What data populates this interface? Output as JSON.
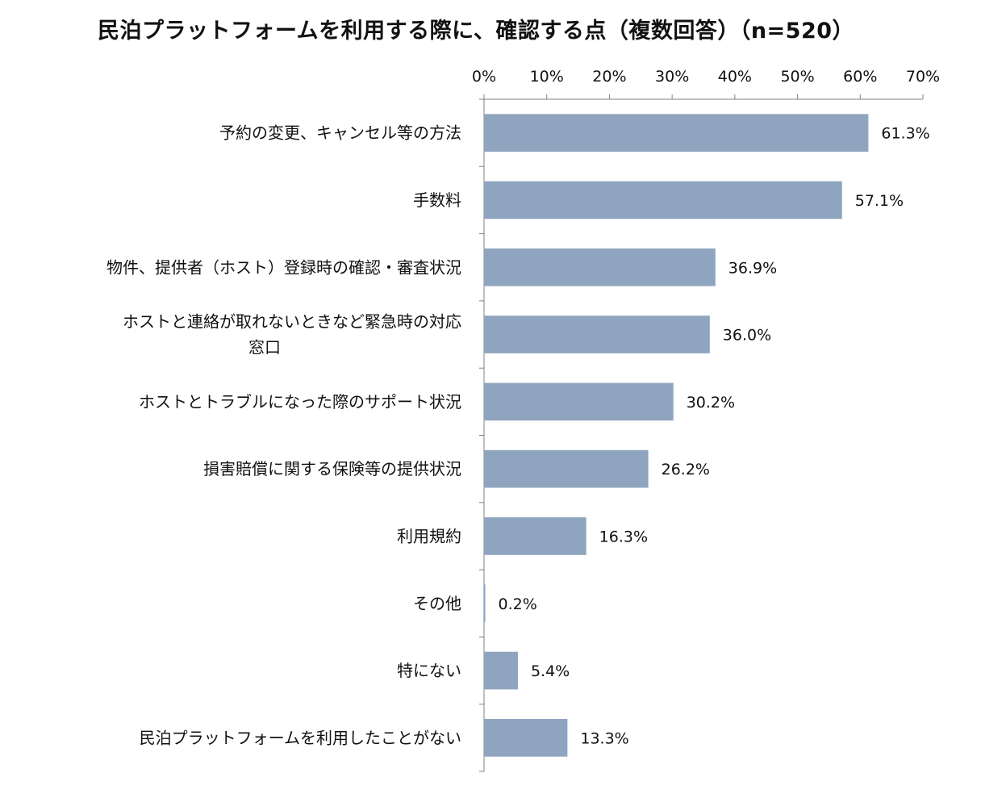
{
  "chart_data": {
    "type": "bar",
    "orientation": "horizontal",
    "title": "民泊プラットフォームを利用する際に、確認する点（複数回答）（n=520）",
    "categories": [
      "予約の変更、キャンセル等の方法",
      "手数料",
      "物件、提供者（ホスト）登録時の確認・審査状況",
      "ホストと連絡が取れないときなど緊急時の対応窓口",
      "ホストとトラブルになった際のサポート状況",
      "損害賠償に関する保険等の提供状況",
      "利用規約",
      "その他",
      "特にない",
      "民泊プラットフォームを利用したことがない"
    ],
    "category_lines": [
      [
        "予約の変更、キャンセル等の方法"
      ],
      [
        "手数料"
      ],
      [
        "物件、提供者（ホスト）登録時の確認・審査状況"
      ],
      [
        "ホストと連絡が取れないときなど緊急時の対応",
        "窓口"
      ],
      [
        "ホストとトラブルになった際のサポート状況"
      ],
      [
        "損害賠償に関する保険等の提供状況"
      ],
      [
        "利用規約"
      ],
      [
        "その他"
      ],
      [
        "特にない"
      ],
      [
        "民泊プラットフォームを利用したことがない"
      ]
    ],
    "values": [
      61.3,
      57.1,
      36.9,
      36.0,
      30.2,
      26.2,
      16.3,
      0.2,
      5.4,
      13.3
    ],
    "value_labels": [
      "61.3%",
      "57.1%",
      "36.9%",
      "36.0%",
      "30.2%",
      "26.2%",
      "16.3%",
      "0.2%",
      "5.4%",
      "13.3%"
    ],
    "xlim": [
      0,
      70
    ],
    "x_ticks": [
      0,
      10,
      20,
      30,
      40,
      50,
      60,
      70
    ],
    "x_tick_labels": [
      "0%",
      "10%",
      "20%",
      "30%",
      "40%",
      "50%",
      "60%",
      "70%"
    ],
    "axis_position": "top",
    "grid": false,
    "legend": "none",
    "bar_color": "#8FA4BE",
    "axis_color": "#808080",
    "text_color": "#111111"
  }
}
